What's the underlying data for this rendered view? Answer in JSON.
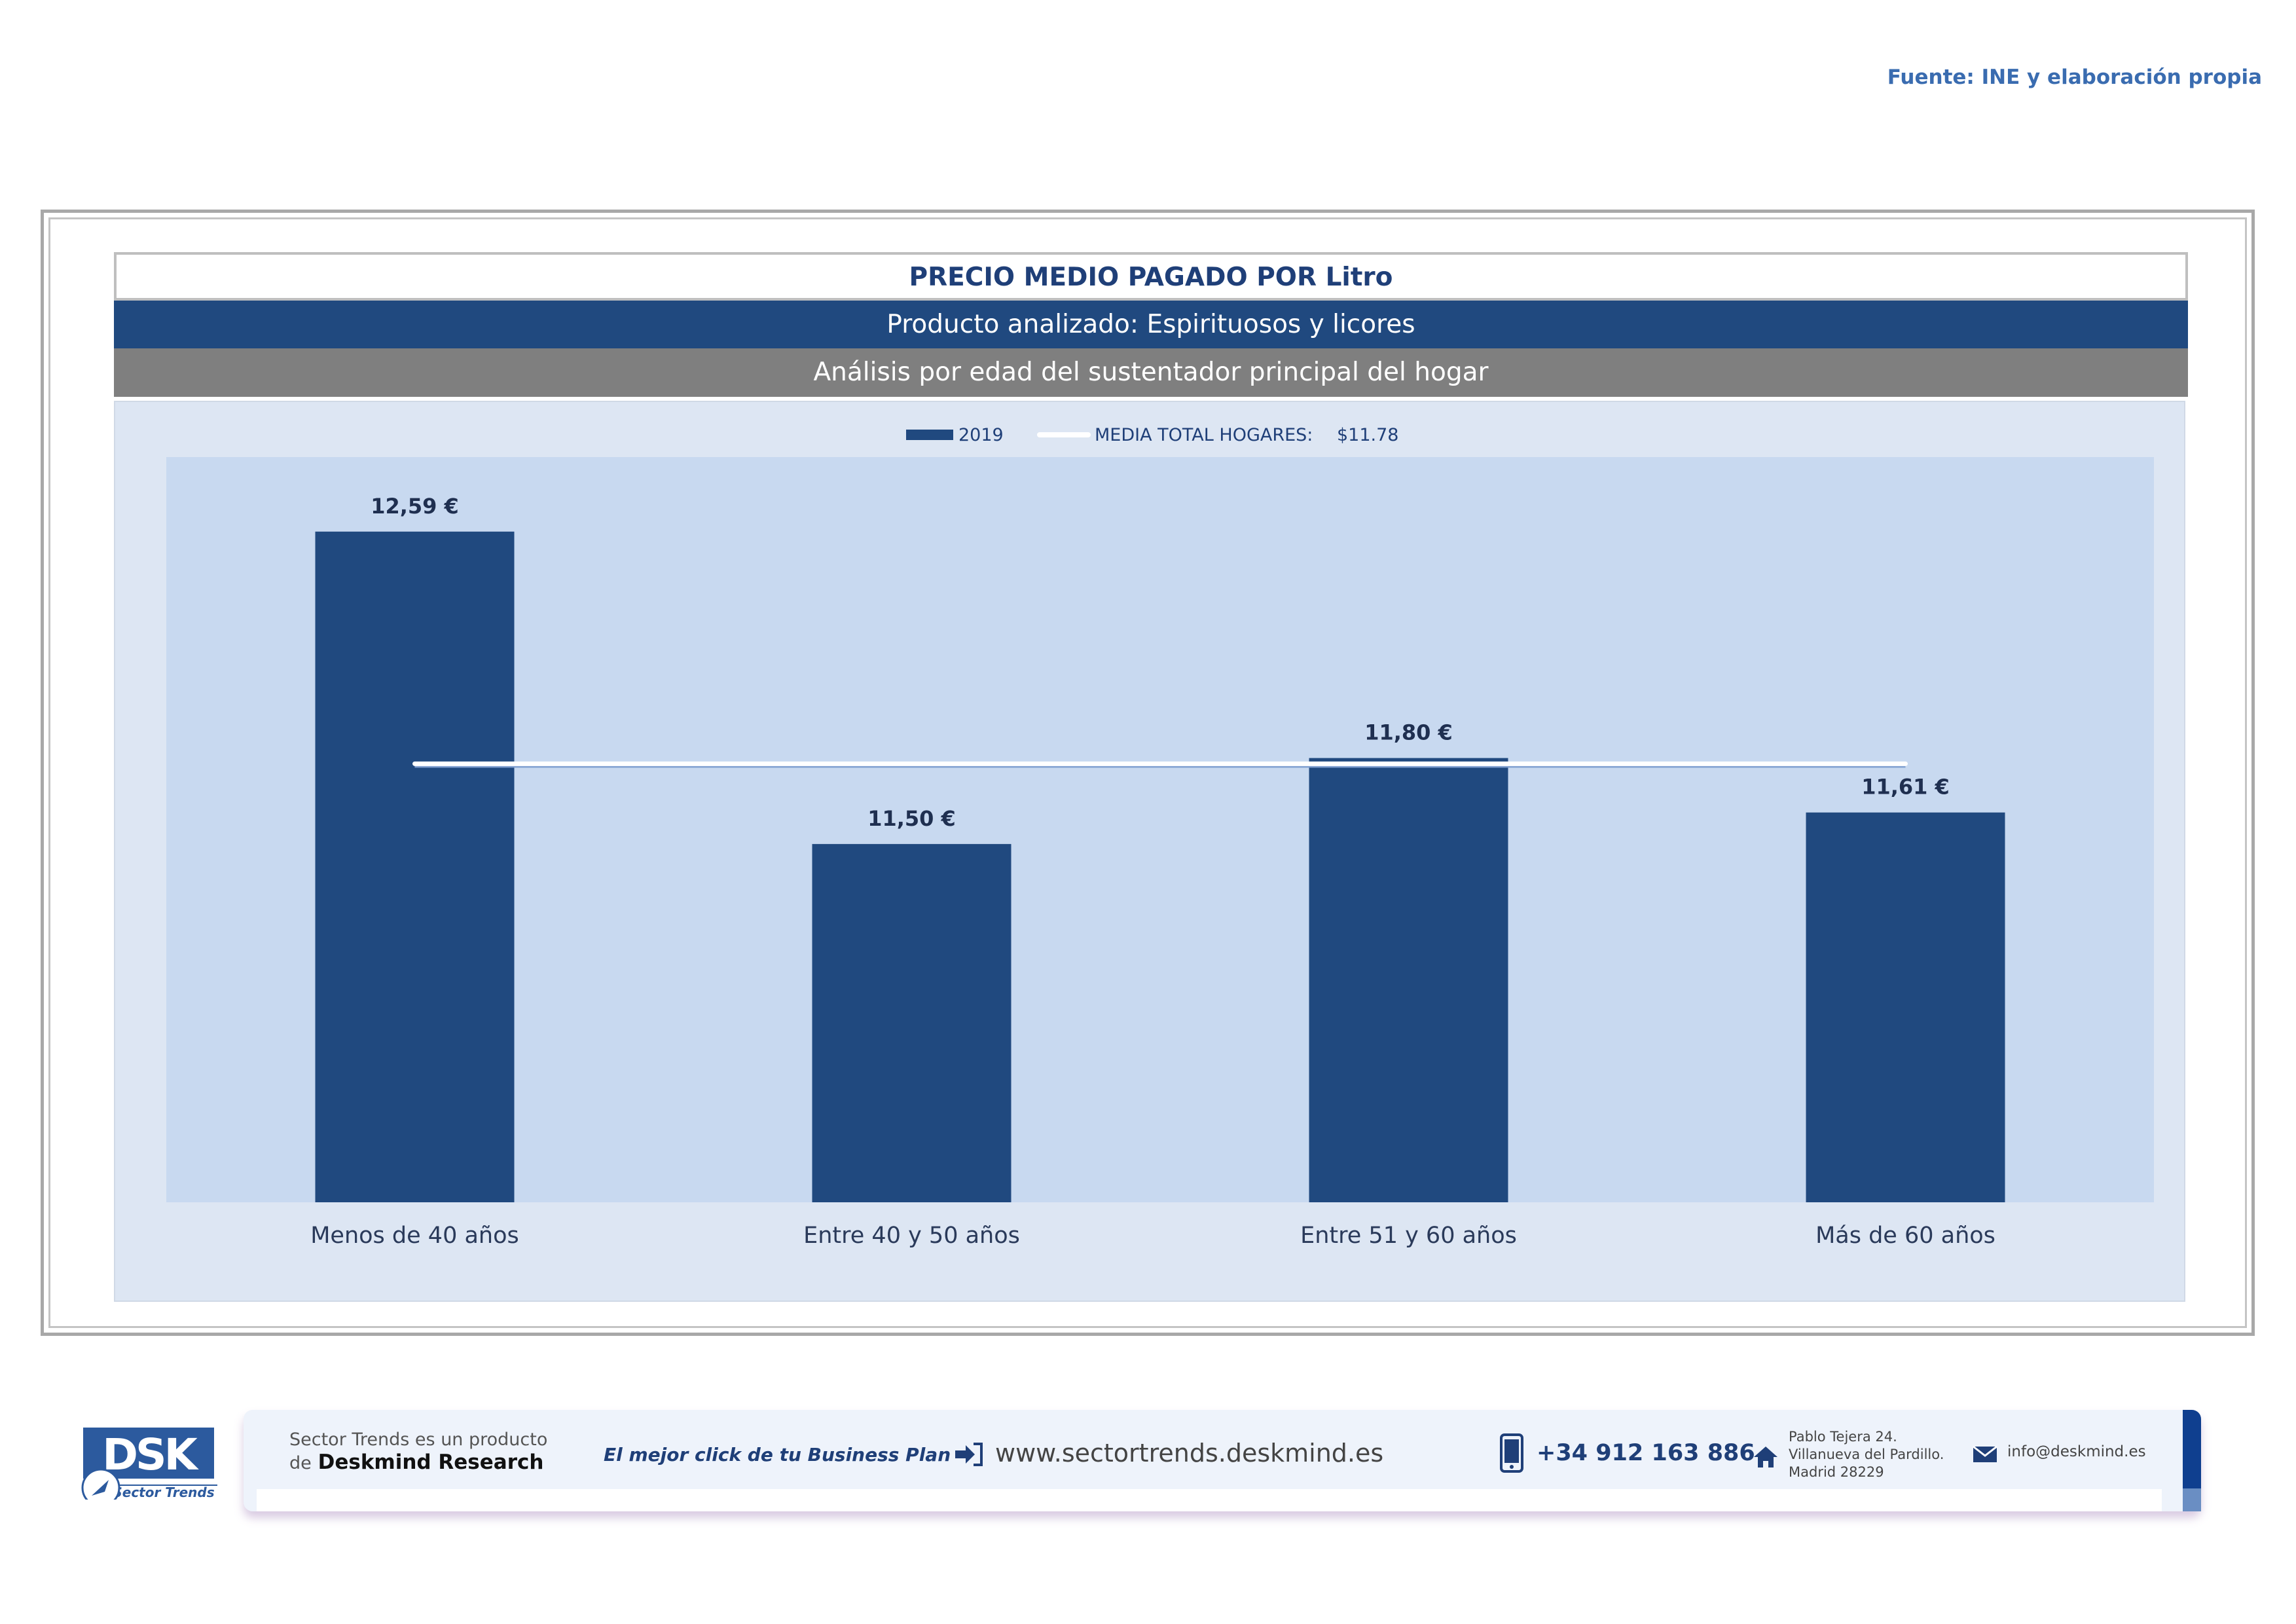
{
  "source_note": "Fuente: INE y elaboración propia",
  "header": {
    "title": "PRECIO MEDIO PAGADO POR Litro",
    "product": "Producto analizado: Espirituosos y licores",
    "analysis": "Análisis por edad del sustentador principal del hogar"
  },
  "colors": {
    "bar": "#20497f",
    "plot_bg": "#c8d9f0",
    "chart_bg": "#dde6f3",
    "mean_line": "#ffffff",
    "label": "#1f2f50"
  },
  "chart_data": {
    "type": "bar",
    "categories": [
      "Menos de 40 años",
      "Entre 40 y 50 años",
      "Entre 51  y 60 años",
      "Más de 60 años"
    ],
    "series": [
      {
        "name": "2019",
        "values": [
          12.59,
          11.5,
          11.8,
          11.61
        ]
      }
    ],
    "data_labels": [
      "12,59 €",
      "11,50 €",
      "11,80 €",
      "11,61 €"
    ],
    "reference_line": {
      "name": "MEDIA TOTAL  HOGARES:",
      "value_label": "$11.78",
      "value": 11.78
    },
    "ylim": [
      10.25,
      12.85
    ],
    "legend_position": "top-center",
    "grid": false
  },
  "footer": {
    "logo_text": "DSK",
    "logo_tagline": "Sector Trends",
    "product_line1": "Sector Trends es un producto",
    "product_line2_prefix": "de",
    "product_line2_brand": "Deskmind Research",
    "slogan": "El mejor click de tu Business Plan",
    "website": "www.sectortrends.deskmind.es",
    "phone": "+34 912 163 886",
    "address_line1": "Pablo Tejera 24.",
    "address_line2": "Villanueva del Pardillo.",
    "address_line3": "Madrid 28229",
    "email": "info@deskmind.es",
    "icons": [
      "login-arrow-icon",
      "smartphone-icon",
      "home-icon",
      "envelope-icon"
    ]
  }
}
